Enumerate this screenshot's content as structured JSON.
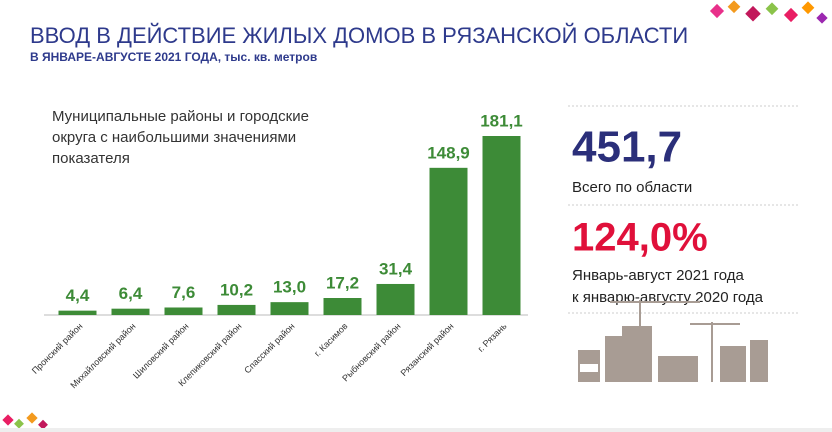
{
  "chart_data": {
    "type": "bar",
    "title": "ВВОД В ДЕЙСТВИЕ ЖИЛЫХ ДОМОВ В РЯЗАНСКОЙ ОБЛАСТИ",
    "subtitle": "В ЯНВАРЕ-АВГУСТЕ  2021 ГОДА, тыс. кв. метров",
    "annotation": [
      "Муниципальные районы и городские",
      "округа с наибольшими значениями",
      "показателя"
    ],
    "categories": [
      "Пронский район",
      "Михайловский район",
      "Шиловский район",
      "Клепиковский район",
      "Спасский район",
      "г. Касимов",
      "Рыбновский район",
      "Рязанский район",
      "г. Рязань"
    ],
    "values": [
      4.4,
      6.4,
      7.6,
      10.2,
      13.0,
      17.2,
      31.4,
      148.9,
      181.1
    ],
    "value_labels": [
      "4,4",
      "6,4",
      "7,6",
      "10,2",
      "13,0",
      "17,2",
      "31,4",
      "148,9",
      "181,1"
    ],
    "color": "#3d8b37"
  },
  "summary": {
    "total": "451,7",
    "total_label": "Всего по области",
    "growth": "124,0%",
    "growth_label": [
      "Январь-август 2021 года",
      "к январю-августу 2020 года"
    ]
  }
}
